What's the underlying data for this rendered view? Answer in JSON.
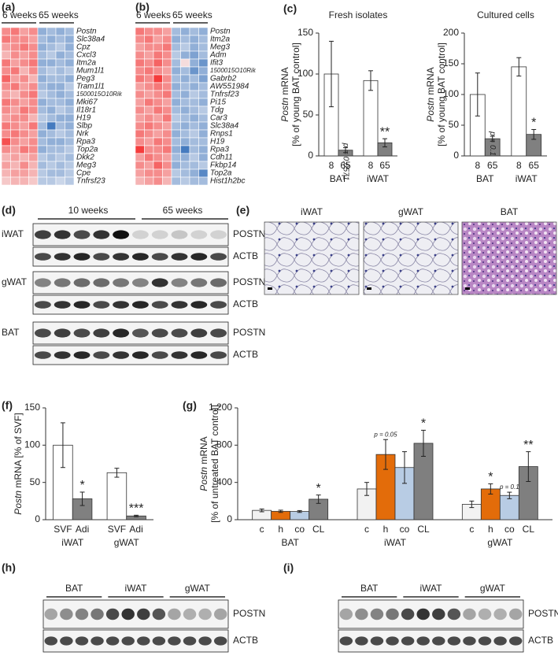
{
  "panels": {
    "a": {
      "label": "(a)",
      "groups": [
        "6 weeks",
        "65 weeks"
      ],
      "genes": [
        "Postn",
        "Slc38a4",
        "Cpz",
        "Cxcl3",
        "Itm2a",
        "Mum1l1",
        "Peg3",
        "Tram1l1",
        "1500015O10Rik",
        "Mki67",
        "Il18r1",
        "H19",
        "Slbp",
        "Nrk",
        "Rpa3",
        "Top2a",
        "Dkk2",
        "Meg3",
        "Cpe",
        "Tnfrsf23"
      ],
      "matrix": [
        [
          0.5,
          0.6,
          0.4,
          0.5,
          -0.5,
          -0.4,
          -0.5,
          -0.4
        ],
        [
          0.6,
          0.5,
          0.5,
          0.4,
          -0.4,
          -0.5,
          -0.4,
          -0.5
        ],
        [
          0.4,
          0.5,
          0.6,
          0.5,
          -0.5,
          -0.4,
          -0.3,
          -0.5
        ],
        [
          0.3,
          0.5,
          0.4,
          0.5,
          -0.4,
          -0.3,
          -0.5,
          -0.4
        ],
        [
          0.6,
          0.4,
          0.5,
          0.6,
          -0.5,
          -0.5,
          -0.4,
          -0.5
        ],
        [
          0.5,
          0.6,
          0.3,
          0.5,
          -0.4,
          -0.3,
          -0.4,
          -0.3
        ],
        [
          0.7,
          0.4,
          0.5,
          0.3,
          -0.5,
          -0.4,
          -0.4,
          -0.5
        ],
        [
          0.5,
          0.6,
          0.4,
          0.5,
          -0.4,
          -0.5,
          -0.5,
          -0.3
        ],
        [
          0.4,
          0.3,
          0.5,
          0.6,
          -0.3,
          -0.4,
          -0.5,
          -0.4
        ],
        [
          0.6,
          0.5,
          0.4,
          0.5,
          -0.5,
          -0.4,
          -0.4,
          -0.5
        ],
        [
          0.5,
          0.4,
          0.6,
          0.5,
          -0.4,
          -0.5,
          -0.3,
          -0.4
        ],
        [
          0.4,
          0.5,
          0.5,
          0.3,
          -0.3,
          -0.4,
          -0.5,
          -0.5
        ],
        [
          0.6,
          0.5,
          0.4,
          0.6,
          -0.4,
          -0.9,
          -0.4,
          -0.5
        ],
        [
          0.5,
          0.6,
          0.5,
          0.4,
          -0.5,
          -0.4,
          -0.3,
          -0.4
        ],
        [
          0.8,
          0.5,
          0.4,
          0.5,
          -0.4,
          -0.5,
          -0.5,
          -0.4
        ],
        [
          0.5,
          0.4,
          0.6,
          0.5,
          -0.5,
          -0.4,
          -0.4,
          -0.3
        ],
        [
          0.3,
          0.4,
          0.3,
          0.4,
          -0.3,
          -0.4,
          -0.3,
          -0.4
        ],
        [
          0.4,
          0.3,
          0.5,
          0.3,
          -0.4,
          -0.3,
          -0.4,
          -0.3
        ],
        [
          0.3,
          0.4,
          0.4,
          0.3,
          -0.3,
          -0.4,
          -0.4,
          -0.3
        ],
        [
          0.2,
          0.3,
          0.3,
          0.2,
          -0.3,
          -0.3,
          -0.2,
          -0.3
        ]
      ]
    },
    "b": {
      "label": "(b)",
      "groups": [
        "6 weeks",
        "65 weeks"
      ],
      "genes": [
        "Postn",
        "Itm2a",
        "Meg3",
        "Adm",
        "Ifit3",
        "1500015O10Rik",
        "Gabrb2",
        "AW551984",
        "Tnfrsf23",
        "Pi15",
        "Tdg",
        "Car3",
        "Slc38a4",
        "Rnps1",
        "H19",
        "Rpa3",
        "Cdh11",
        "Fkbp14",
        "Top2a",
        "Hist1h2bc"
      ],
      "matrix": [
        [
          0.6,
          0.5,
          0.5,
          0.4,
          -0.4,
          -0.5,
          -0.4,
          -0.5
        ],
        [
          0.5,
          0.6,
          0.4,
          0.5,
          -0.5,
          -0.4,
          -0.5,
          -0.4
        ],
        [
          0.4,
          0.5,
          0.5,
          0.6,
          -0.4,
          -0.3,
          -0.5,
          -0.4
        ],
        [
          0.5,
          0.4,
          0.6,
          0.5,
          -0.3,
          -0.5,
          -0.6,
          -0.4
        ],
        [
          0.6,
          0.5,
          0.7,
          0.5,
          -0.4,
          0.1,
          -0.5,
          -0.7
        ],
        [
          0.5,
          0.6,
          0.5,
          0.4,
          -0.5,
          -0.4,
          -0.7,
          -0.5
        ],
        [
          0.6,
          0.5,
          0.9,
          0.5,
          -0.4,
          -0.5,
          -0.4,
          -0.6
        ],
        [
          0.4,
          0.5,
          0.6,
          0.5,
          -0.5,
          -0.4,
          -0.5,
          -0.4
        ],
        [
          0.5,
          0.4,
          0.5,
          0.6,
          -0.4,
          -0.5,
          -0.3,
          -0.4
        ],
        [
          0.4,
          0.6,
          0.5,
          0.4,
          -0.5,
          -0.4,
          -0.4,
          -0.5
        ],
        [
          0.5,
          0.4,
          0.6,
          0.5,
          -0.4,
          -0.5,
          -0.4,
          -0.3
        ],
        [
          0.4,
          0.5,
          0.4,
          0.6,
          -0.3,
          -0.4,
          -0.5,
          -0.4
        ],
        [
          0.5,
          0.6,
          0.5,
          0.4,
          -0.4,
          -0.5,
          -0.4,
          -0.5
        ],
        [
          0.6,
          0.5,
          0.4,
          0.5,
          -0.5,
          -0.4,
          -0.3,
          -0.5
        ],
        [
          0.5,
          0.4,
          0.6,
          0.5,
          -0.4,
          -0.5,
          -0.4,
          -0.4
        ],
        [
          0.9,
          0.5,
          0.5,
          0.6,
          -0.5,
          -0.9,
          -0.4,
          -0.5
        ],
        [
          0.4,
          0.6,
          0.5,
          0.4,
          -0.4,
          -0.5,
          -0.3,
          -0.5
        ],
        [
          0.5,
          0.4,
          0.7,
          0.5,
          -0.5,
          -0.4,
          -0.4,
          -0.3
        ],
        [
          0.4,
          0.5,
          0.5,
          0.4,
          -0.3,
          -0.4,
          -0.5,
          -0.8
        ],
        [
          0.3,
          0.4,
          0.5,
          0.3,
          -0.4,
          -0.3,
          -0.4,
          -0.4
        ]
      ]
    },
    "c": {
      "label": "(c)",
      "charts": [
        {
          "type": "bar",
          "title": "Fresh isolates",
          "y_label_gene": "Postn",
          "y_label": "mRNA",
          "y_label_unit": "[% of young BAT control]",
          "categories": [
            "BAT",
            "iWAT"
          ],
          "ylim": [
            0,
            150
          ],
          "yticks": [
            0,
            50,
            100,
            150
          ],
          "series": [
            {
              "name": "8",
              "color": "#ffffff",
              "values": [
                100,
                92
              ],
              "errors": [
                40,
                12
              ],
              "annotations": [
                null,
                null
              ]
            },
            {
              "name": "65",
              "color": "#808080",
              "values": [
                7,
                16
              ],
              "errors": [
                3,
                5
              ],
              "annotations": [
                {
                  "text": "p = 0.0571",
                  "vertical": true
                },
                {
                  "text": "**",
                  "vertical": false
                }
              ]
            }
          ]
        },
        {
          "type": "bar",
          "title": "Cultured cells",
          "y_label_gene": "Postn",
          "y_label": "mRNA",
          "y_label_unit": "[% of young BAT control]",
          "categories": [
            "BAT",
            "iWAT"
          ],
          "ylim": [
            0,
            200
          ],
          "yticks": [
            0,
            50,
            100,
            150,
            200
          ],
          "series": [
            {
              "name": "8",
              "color": "#ffffff",
              "values": [
                100,
                145
              ],
              "errors": [
                35,
                15
              ],
              "annotations": [
                null,
                null
              ]
            },
            {
              "name": "65",
              "color": "#808080",
              "values": [
                28,
                35
              ],
              "errors": [
                4,
                8
              ],
              "annotations": [
                {
                  "text": "p = 0.1",
                  "vertical": true
                },
                {
                  "text": "*",
                  "vertical": false
                }
              ]
            }
          ]
        }
      ]
    },
    "d": {
      "label": "(d)",
      "groups": [
        "10 weeks",
        "65 weeks"
      ],
      "tissues": [
        "iWAT",
        "gWAT",
        "BAT"
      ],
      "proteins": [
        "POSTN",
        "ACTB"
      ]
    },
    "e": {
      "label": "(e)",
      "images": [
        "iWAT",
        "gWAT",
        "BAT"
      ]
    },
    "f": {
      "label": "(f)",
      "charts": [
        {
          "type": "bar",
          "y_label_gene": "Postn",
          "y_label": "mRNA [% of SVF]",
          "categories": [
            "iWAT",
            "gWAT"
          ],
          "ylim": [
            0,
            150
          ],
          "yticks": [
            0,
            50,
            100,
            150
          ],
          "series": [
            {
              "name": "SVF",
              "color": "#ffffff",
              "values": [
                100,
                63
              ],
              "errors": [
                30,
                6
              ],
              "annotations": [
                null,
                null
              ]
            },
            {
              "name": "Adi",
              "color": "#808080",
              "values": [
                28,
                5
              ],
              "errors": [
                9,
                1
              ],
              "annotations": [
                {
                  "text": "*",
                  "vertical": false
                },
                {
                  "text": "***",
                  "vertical": false
                }
              ]
            }
          ]
        }
      ]
    },
    "g": {
      "label": "(g)",
      "charts": [
        {
          "type": "bar",
          "y_label_gene": "Postn",
          "y_label": "mRNA",
          "y_label_unit": "[% of untreated  BAT control]",
          "categories": [
            "BAT",
            "iWAT",
            "gWAT"
          ],
          "ylim": [
            0,
            1200
          ],
          "yticks": [
            0,
            400,
            800,
            {
              "value": 1200,
              "label": "1,200"
            }
          ],
          "series": [
            {
              "name": "c",
              "color": "#f2f2f2",
              "values": [
                100,
                330,
                165
              ],
              "errors": [
                15,
                70,
                35
              ],
              "annotations": [
                null,
                null,
                null
              ]
            },
            {
              "name": "h",
              "color": "#e36c0a",
              "values": [
                90,
                700,
                330
              ],
              "errors": [
                12,
                160,
                55
              ],
              "annotations": [
                null,
                {
                  "text": "p = 0.05",
                  "vertical": false
                },
                {
                  "text": "*",
                  "vertical": false
                }
              ]
            },
            {
              "name": "co",
              "color": "#b8cce4",
              "values": [
                88,
                560,
                260
              ],
              "errors": [
                10,
                170,
                35
              ],
              "annotations": [
                null,
                null,
                {
                  "text": "p = 0.1",
                  "vertical": false
                }
              ]
            },
            {
              "name": "CL",
              "color": "#7f7f7f",
              "values": [
                220,
                820,
                570
              ],
              "errors": [
                45,
                140,
                160
              ],
              "annotations": [
                {
                  "text": "*",
                  "vertical": false
                },
                {
                  "text": "*",
                  "vertical": false
                },
                {
                  "text": "**",
                  "vertical": false
                }
              ]
            }
          ]
        }
      ]
    },
    "h": {
      "label": "(h)",
      "groups": [
        "BAT",
        "iWAT",
        "gWAT"
      ],
      "proteins": [
        "POSTN",
        "ACTB"
      ]
    },
    "i": {
      "label": "(i)",
      "groups": [
        "BAT",
        "iWAT",
        "gWAT"
      ],
      "proteins": [
        "POSTN",
        "ACTB"
      ]
    }
  }
}
